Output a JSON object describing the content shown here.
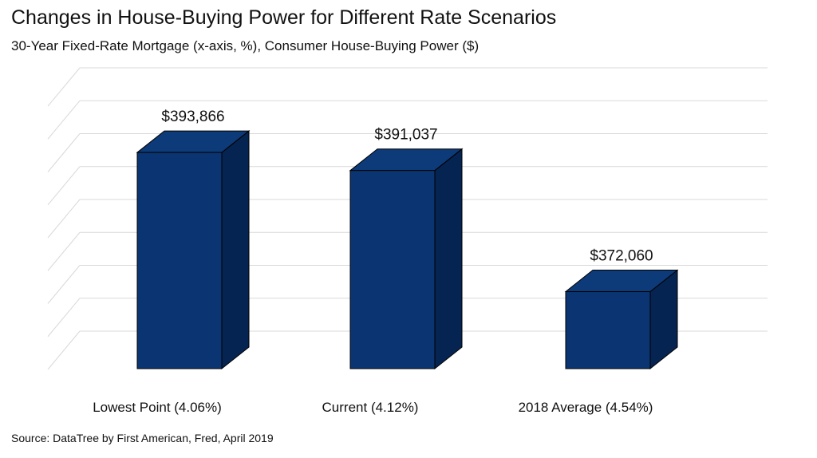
{
  "title": "Changes in House-Buying Power for Different Rate Scenarios",
  "subtitle": "30-Year Fixed-Rate Mortgage (x-axis, %), Consumer House-Buying Power ($)",
  "source": "Source:  DataTree by First American, Fred, April 2019",
  "colors": {
    "bar_front": "#0a3572",
    "bar_side": "#062451",
    "bar_top": "#0d3a78",
    "grid": "#d9d9d9"
  },
  "chart_data": {
    "type": "bar",
    "style": "3d-column",
    "categories": [
      "Lowest Point (4.06%)",
      "Current (4.12%)",
      "2018 Average (4.54%)"
    ],
    "values": [
      393866,
      391037,
      372060
    ],
    "value_labels": [
      "$393,866",
      "$391,037",
      "$372,060"
    ],
    "ylim": [
      360000,
      400000
    ],
    "grid": true,
    "legend": "none"
  }
}
